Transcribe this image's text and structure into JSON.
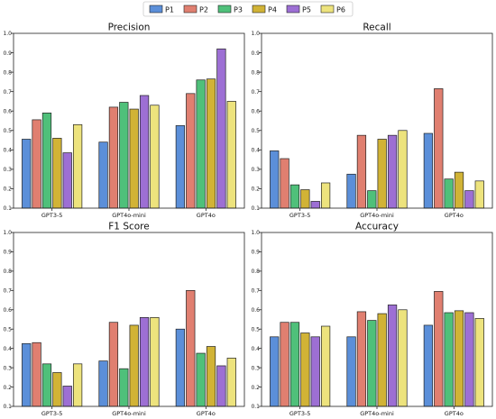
{
  "legend": {
    "position": "top-center",
    "items": [
      {
        "name": "P1",
        "color": "#5b8fd9"
      },
      {
        "name": "P2",
        "color": "#e07f70"
      },
      {
        "name": "P3",
        "color": "#4fc07a"
      },
      {
        "name": "P4",
        "color": "#d1b336"
      },
      {
        "name": "P5",
        "color": "#9d6fd4"
      },
      {
        "name": "P6",
        "color": "#ede37d"
      }
    ]
  },
  "chart_data": [
    {
      "type": "bar",
      "title": "Precision",
      "categories": [
        "GPT3-5",
        "GPT4o-mini",
        "GPT4o"
      ],
      "ylim": [
        0.1,
        1.0
      ],
      "yticks": [
        "0.1",
        "0.2",
        "0.3",
        "0.4",
        "0.5",
        "0.6",
        "0.7",
        "0.8",
        "0.9",
        "1.0"
      ],
      "grid": false,
      "series": [
        {
          "name": "P1",
          "values": [
            0.455,
            0.44,
            0.525
          ]
        },
        {
          "name": "P2",
          "values": [
            0.555,
            0.62,
            0.69
          ]
        },
        {
          "name": "P3",
          "values": [
            0.59,
            0.645,
            0.76
          ]
        },
        {
          "name": "P4",
          "values": [
            0.46,
            0.61,
            0.765
          ]
        },
        {
          "name": "P5",
          "values": [
            0.385,
            0.68,
            0.92
          ]
        },
        {
          "name": "P6",
          "values": [
            0.53,
            0.63,
            0.65
          ]
        }
      ]
    },
    {
      "type": "bar",
      "title": "Recall",
      "categories": [
        "GPT3-5",
        "GPT4o-mini",
        "GPT4o"
      ],
      "ylim": [
        0.1,
        1.0
      ],
      "yticks": [
        "0.1",
        "0.2",
        "0.3",
        "0.4",
        "0.5",
        "0.6",
        "0.7",
        "0.8",
        "0.9",
        "1.0"
      ],
      "grid": false,
      "series": [
        {
          "name": "P1",
          "values": [
            0.395,
            0.275,
            0.485
          ]
        },
        {
          "name": "P2",
          "values": [
            0.355,
            0.475,
            0.715
          ]
        },
        {
          "name": "P3",
          "values": [
            0.22,
            0.19,
            0.25
          ]
        },
        {
          "name": "P4",
          "values": [
            0.195,
            0.455,
            0.285
          ]
        },
        {
          "name": "P5",
          "values": [
            0.135,
            0.475,
            0.19
          ]
        },
        {
          "name": "P6",
          "values": [
            0.23,
            0.5,
            0.24
          ]
        }
      ]
    },
    {
      "type": "bar",
      "title": "F1 Score",
      "categories": [
        "GPT3-5",
        "GPT4o-mini",
        "GPT4o"
      ],
      "ylim": [
        0.1,
        1.0
      ],
      "yticks": [
        "0.1",
        "0.2",
        "0.3",
        "0.4",
        "0.5",
        "0.6",
        "0.7",
        "0.8",
        "0.9",
        "1.0"
      ],
      "grid": false,
      "series": [
        {
          "name": "P1",
          "values": [
            0.425,
            0.335,
            0.5
          ]
        },
        {
          "name": "P2",
          "values": [
            0.43,
            0.535,
            0.7
          ]
        },
        {
          "name": "P3",
          "values": [
            0.32,
            0.295,
            0.375
          ]
        },
        {
          "name": "P4",
          "values": [
            0.275,
            0.52,
            0.41
          ]
        },
        {
          "name": "P5",
          "values": [
            0.205,
            0.56,
            0.31
          ]
        },
        {
          "name": "P6",
          "values": [
            0.32,
            0.56,
            0.35
          ]
        }
      ]
    },
    {
      "type": "bar",
      "title": "Accuracy",
      "categories": [
        "GPT3-5",
        "GPT4o-mini",
        "GPT4o"
      ],
      "ylim": [
        0.1,
        1.0
      ],
      "yticks": [
        "0.1",
        "0.2",
        "0.3",
        "0.4",
        "0.5",
        "0.6",
        "0.7",
        "0.8",
        "0.9",
        "1.0"
      ],
      "grid": false,
      "series": [
        {
          "name": "P1",
          "values": [
            0.46,
            0.46,
            0.52
          ]
        },
        {
          "name": "P2",
          "values": [
            0.535,
            0.59,
            0.695
          ]
        },
        {
          "name": "P3",
          "values": [
            0.535,
            0.545,
            0.585
          ]
        },
        {
          "name": "P4",
          "values": [
            0.48,
            0.58,
            0.595
          ]
        },
        {
          "name": "P5",
          "values": [
            0.46,
            0.625,
            0.585
          ]
        },
        {
          "name": "P6",
          "values": [
            0.515,
            0.6,
            0.555
          ]
        }
      ]
    }
  ]
}
